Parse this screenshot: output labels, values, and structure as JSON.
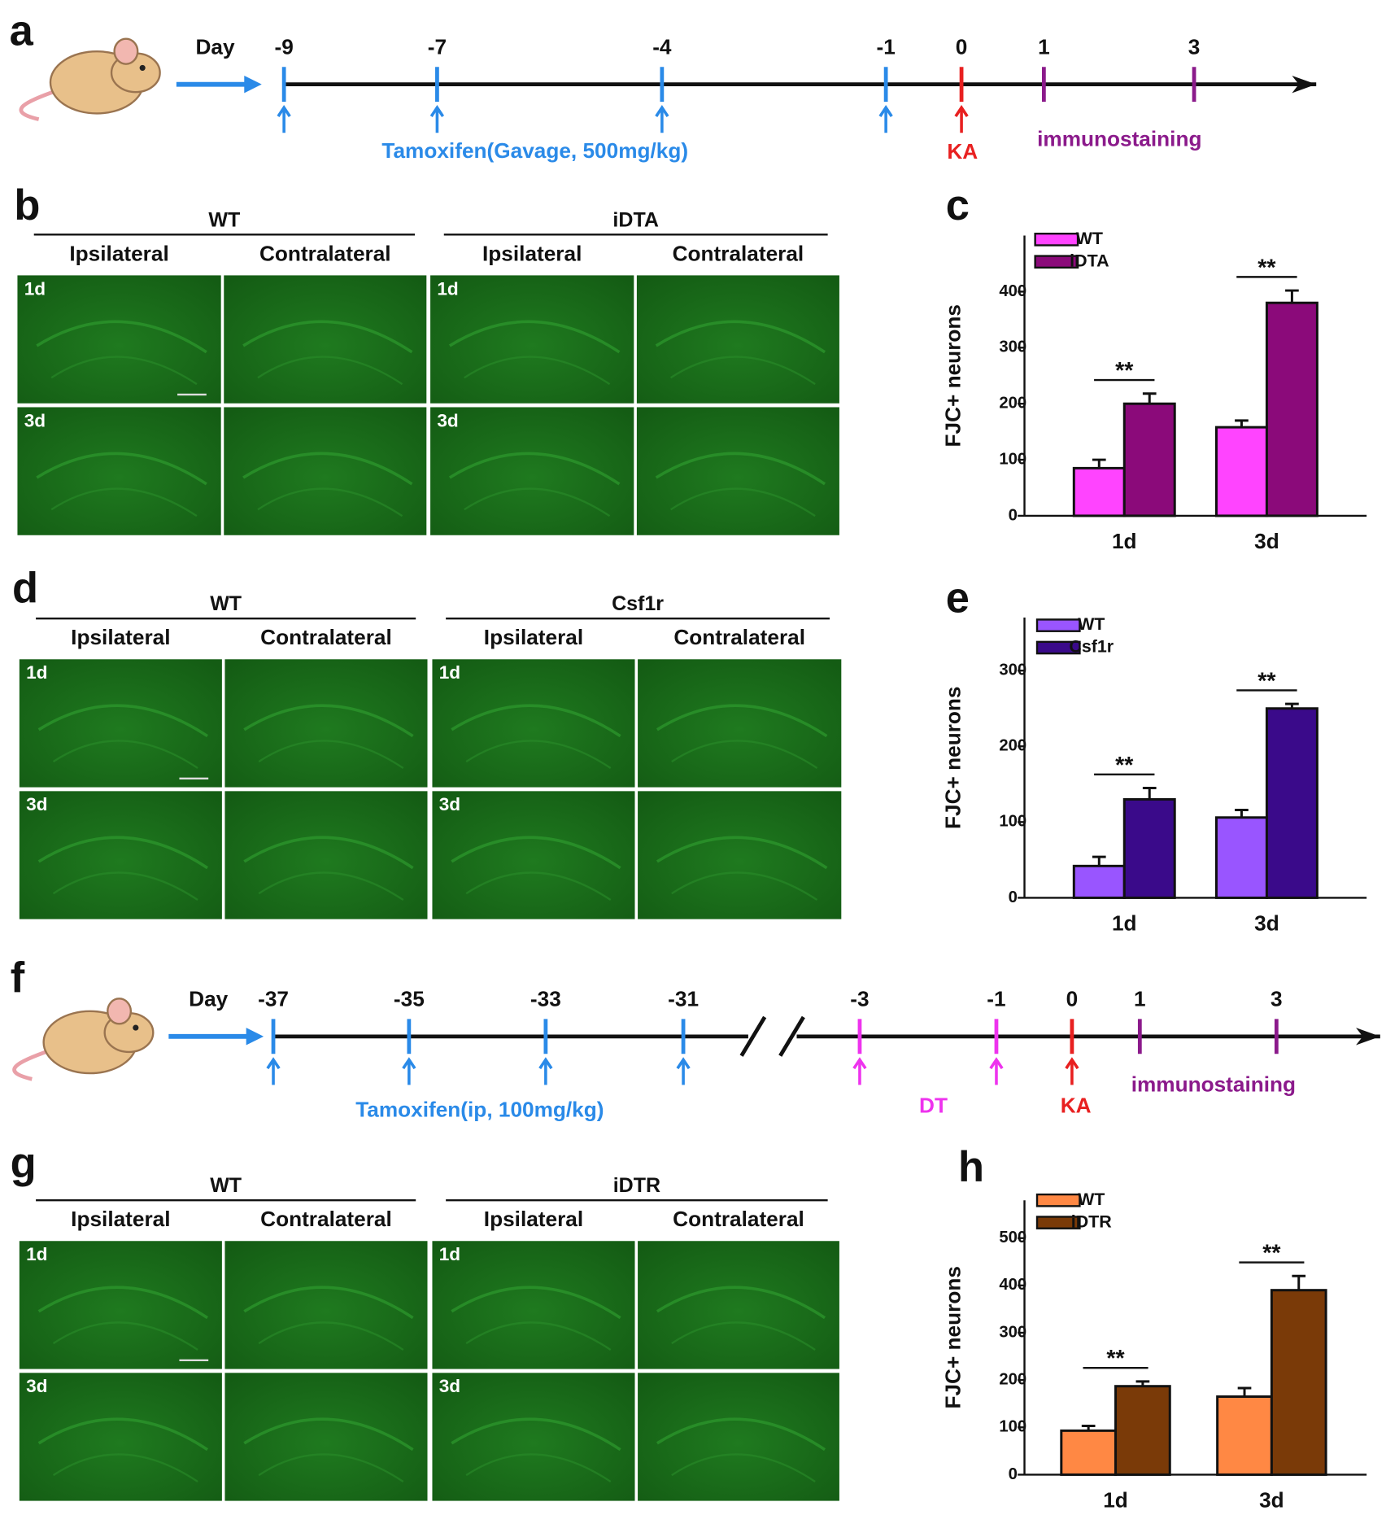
{
  "panel_letters": [
    "a",
    "b",
    "c",
    "d",
    "e",
    "f",
    "g",
    "h"
  ],
  "timelines": [
    {
      "day_label": "Day",
      "days": [
        "-9",
        "-7",
        "-4",
        "-1",
        "0",
        "1",
        "3"
      ],
      "treatment": "Tamoxifen(Gavage, 500mg/kg)",
      "ka": "KA",
      "readout": "immunostaining"
    },
    {
      "day_label": "Day",
      "days": [
        "-37",
        "-35",
        "-33",
        "-31",
        "-3",
        "-1",
        "0",
        "1",
        "3"
      ],
      "treatment": "Tamoxifen(ip, 100mg/kg)",
      "dt": "DT",
      "ka": "KA",
      "readout": "immunostaining"
    }
  ],
  "image_panels": [
    {
      "groups": [
        "WT",
        "iDTA"
      ],
      "columns": [
        "Ipsilateral",
        "Contralateral",
        "Ipsilateral",
        "Contralateral"
      ],
      "rows": [
        "1d",
        "3d"
      ]
    },
    {
      "groups": [
        "WT",
        "Csf1r"
      ],
      "columns": [
        "Ipsilateral",
        "Contralateral",
        "Ipsilateral",
        "Contralateral"
      ],
      "rows": [
        "1d",
        "3d"
      ]
    },
    {
      "groups": [
        "WT",
        "iDTR"
      ],
      "columns": [
        "Ipsilateral",
        "Contralateral",
        "Ipsilateral",
        "Contralateral"
      ],
      "rows": [
        "1d",
        "3d"
      ]
    }
  ],
  "chart_data": [
    {
      "type": "bar",
      "y_label": "FJC+ neurons",
      "categories": [
        "1d",
        "3d"
      ],
      "series": [
        {
          "name": "WT",
          "color": "#ff44ff",
          "values": [
            85,
            158
          ],
          "errors": [
            15,
            12
          ]
        },
        {
          "name": "iDTA",
          "color": "#8b0a7a",
          "values": [
            200,
            380
          ],
          "errors": [
            18,
            22
          ]
        }
      ],
      "annotations": [
        "**",
        "**"
      ],
      "ylim": [
        0,
        500
      ],
      "yticks": [
        0,
        100,
        200,
        300,
        400
      ]
    },
    {
      "type": "bar",
      "y_label": "FJC+ neurons",
      "categories": [
        "1d",
        "3d"
      ],
      "series": [
        {
          "name": "WT",
          "color": "#9955ff",
          "values": [
            42,
            106
          ],
          "errors": [
            12,
            10
          ]
        },
        {
          "name": "Csf1r",
          "color": "#3a0a8a",
          "values": [
            130,
            250
          ],
          "errors": [
            15,
            6
          ]
        }
      ],
      "annotations": [
        "**",
        "**"
      ],
      "ylim": [
        0,
        370
      ],
      "yticks": [
        0,
        100,
        200,
        300
      ]
    },
    {
      "type": "bar",
      "y_label": "FJC+ neurons",
      "categories": [
        "1d",
        "3d"
      ],
      "series": [
        {
          "name": "WT",
          "color": "#ff8844",
          "values": [
            93,
            165
          ],
          "errors": [
            10,
            18
          ]
        },
        {
          "name": "iDTR",
          "color": "#7a3a08",
          "values": [
            187,
            390
          ],
          "errors": [
            10,
            30
          ]
        }
      ],
      "annotations": [
        "**",
        "**"
      ],
      "ylim": [
        0,
        580
      ],
      "yticks": [
        0,
        100,
        200,
        300,
        400,
        500
      ]
    }
  ]
}
